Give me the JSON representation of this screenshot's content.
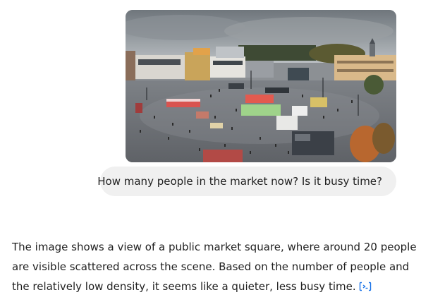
{
  "conversation": {
    "user_message": {
      "image_icon": "market-square-photo",
      "text": "How many people in the market now? Is it busy time?"
    },
    "assistant_message": {
      "lines": [
        "The image shows a view of a public market square, where around 20 people",
        "are visible scattered across the scene. Based on the number of people and",
        "the relatively low density, it seems like a quieter, less busy time."
      ],
      "cite_icon": "citation-link-icon"
    }
  },
  "colors": {
    "bubble": "#f0f0f0",
    "text": "#1f1f1f",
    "link": "#1a73e8"
  }
}
